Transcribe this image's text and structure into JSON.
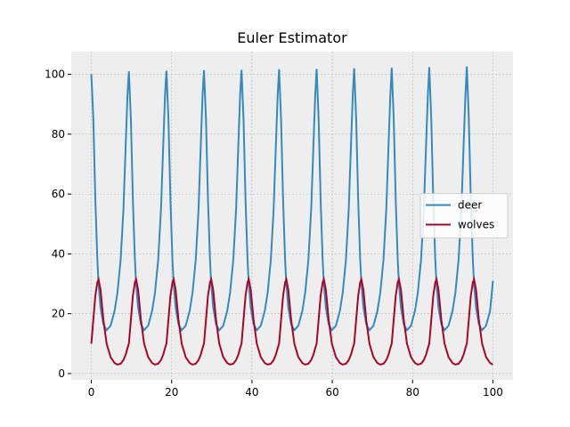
{
  "chart_data": {
    "type": "line",
    "title": "Euler Estimator",
    "x": [
      0,
      0.5,
      1,
      1.5,
      1.8,
      2.3,
      3,
      3.8,
      4.8,
      5.8,
      6.5,
      7.3,
      8,
      8.6,
      9,
      9.35,
      9.85,
      10.35,
      10.85,
      11.15,
      11.65,
      12.35,
      13.15,
      14.15,
      15.15,
      15.85,
      16.65,
      17.35,
      17.95,
      18.35,
      18.7,
      19.2,
      19.7,
      20.2,
      20.5,
      21,
      21.7,
      22.5,
      23.5,
      24.5,
      25.2,
      26,
      26.7,
      27.3,
      27.7,
      28.05,
      28.55,
      29.05,
      29.55,
      29.85,
      30.35,
      31.05,
      31.85,
      32.85,
      33.85,
      34.55,
      35.35,
      36.05,
      36.65,
      37.05,
      37.4,
      37.9,
      38.4,
      38.9,
      39.2,
      39.7,
      40.4,
      41.2,
      42.2,
      43.2,
      43.9,
      44.7,
      45.4,
      46,
      46.4,
      46.75,
      47.25,
      47.75,
      48.25,
      48.55,
      49.05,
      49.75,
      50.55,
      51.55,
      52.55,
      53.25,
      54.05,
      54.75,
      55.35,
      55.75,
      56.1,
      56.6,
      57.1,
      57.6,
      57.9,
      58.4,
      59.1,
      59.9,
      60.9,
      61.9,
      62.6,
      63.4,
      64.1,
      64.7,
      65.1,
      65.45,
      65.95,
      66.45,
      66.95,
      67.25,
      67.75,
      68.45,
      69.25,
      70.25,
      71.25,
      71.95,
      72.75,
      73.45,
      74.05,
      74.45,
      74.8,
      75.3,
      75.8,
      76.3,
      76.6,
      77.1,
      77.8,
      78.6,
      79.6,
      80.6,
      81.3,
      82.1,
      82.8,
      83.4,
      83.8,
      84.15,
      84.65,
      85.15,
      85.65,
      85.95,
      86.45,
      87.15,
      87.95,
      88.95,
      89.95,
      90.65,
      91.45,
      92.15,
      92.75,
      93.15,
      93.5,
      94,
      94.5,
      95,
      95.3,
      95.8,
      96.5,
      97.3,
      98.3,
      99.3,
      100
    ],
    "series": [
      {
        "name": "deer",
        "color": "#348ABD",
        "values": [
          100,
          85,
          58,
          38,
          30,
          22,
          16.5,
          14.5,
          16,
          21,
          27,
          38,
          55,
          78,
          93,
          101,
          85,
          58,
          38,
          30,
          22,
          16.5,
          14.5,
          16,
          21,
          27,
          38,
          55,
          78,
          93,
          101.2,
          85,
          58,
          38,
          30,
          22,
          16.5,
          14.5,
          16,
          21,
          27,
          38,
          55,
          78,
          93,
          101.4,
          85,
          58,
          38,
          30,
          22,
          16.5,
          14.5,
          16,
          21,
          27,
          38,
          55,
          78,
          93,
          101.5,
          85,
          58,
          38,
          30,
          22,
          16.5,
          14.5,
          16,
          21,
          27,
          38,
          55,
          78,
          93,
          101.7,
          85,
          58,
          38,
          30,
          22,
          16.5,
          14.5,
          16,
          21,
          27,
          38,
          55,
          78,
          93,
          101.8,
          85,
          58,
          38,
          30,
          22,
          16.5,
          14.5,
          16,
          21,
          27,
          38,
          55,
          78,
          93,
          102,
          85,
          58,
          38,
          30,
          22,
          16.5,
          14.5,
          16,
          21,
          27,
          38,
          55,
          78,
          93,
          102.2,
          85,
          58,
          38,
          30,
          22,
          16.5,
          14.5,
          16,
          21,
          27,
          38,
          55,
          78,
          93,
          102.4,
          85,
          58,
          38,
          30,
          22,
          16.5,
          14.5,
          16,
          21,
          27,
          38,
          55,
          78,
          93,
          102.6,
          85,
          58,
          38,
          30,
          22,
          16.5,
          14.5,
          16,
          21,
          31
        ]
      },
      {
        "name": "wolves",
        "color": "#A60628",
        "values": [
          10,
          18,
          26,
          30.5,
          31.5,
          28,
          18,
          10,
          5.5,
          3.5,
          3,
          3.3,
          4.5,
          6.5,
          8.5,
          10,
          18,
          26,
          30.5,
          31.5,
          28,
          18,
          10,
          5.5,
          3.5,
          3,
          3.3,
          4.5,
          6.5,
          8.5,
          10,
          18,
          26,
          30.5,
          31.5,
          28,
          18,
          10,
          5.5,
          3.5,
          3,
          3.3,
          4.5,
          6.5,
          8.5,
          10,
          18,
          26,
          30.5,
          31.5,
          28,
          18,
          10,
          5.5,
          3.5,
          3,
          3.3,
          4.5,
          6.5,
          8.5,
          10,
          18,
          26,
          30.5,
          31.5,
          28,
          18,
          10,
          5.5,
          3.5,
          3,
          3.3,
          4.5,
          6.5,
          8.5,
          10,
          18,
          26,
          30.5,
          31.5,
          28,
          18,
          10,
          5.5,
          3.5,
          3,
          3.3,
          4.5,
          6.5,
          8.5,
          10,
          18,
          26,
          30.5,
          31.5,
          28,
          18,
          10,
          5.5,
          3.5,
          3,
          3.3,
          4.5,
          6.5,
          8.5,
          10,
          18,
          26,
          30.5,
          31.5,
          28,
          18,
          10,
          5.5,
          3.5,
          3,
          3.3,
          4.5,
          6.5,
          8.5,
          10,
          18,
          26,
          30.5,
          31.5,
          28,
          18,
          10,
          5.5,
          3.5,
          3,
          3.3,
          4.5,
          6.5,
          8.5,
          10,
          18,
          26,
          30.5,
          31.5,
          28,
          18,
          10,
          5.5,
          3.5,
          3,
          3.3,
          4.5,
          6.5,
          8.5,
          10,
          18,
          26,
          30.5,
          31.5,
          28,
          18,
          10,
          5.5,
          3.5,
          3
        ]
      }
    ],
    "xlim": [
      -5,
      105
    ],
    "ylim": [
      -2.1,
      107.6
    ],
    "xticks": [
      0,
      20,
      40,
      60,
      80,
      100
    ],
    "yticks": [
      0,
      20,
      40,
      60,
      80,
      100
    ],
    "grid": true,
    "legend": "center right"
  }
}
